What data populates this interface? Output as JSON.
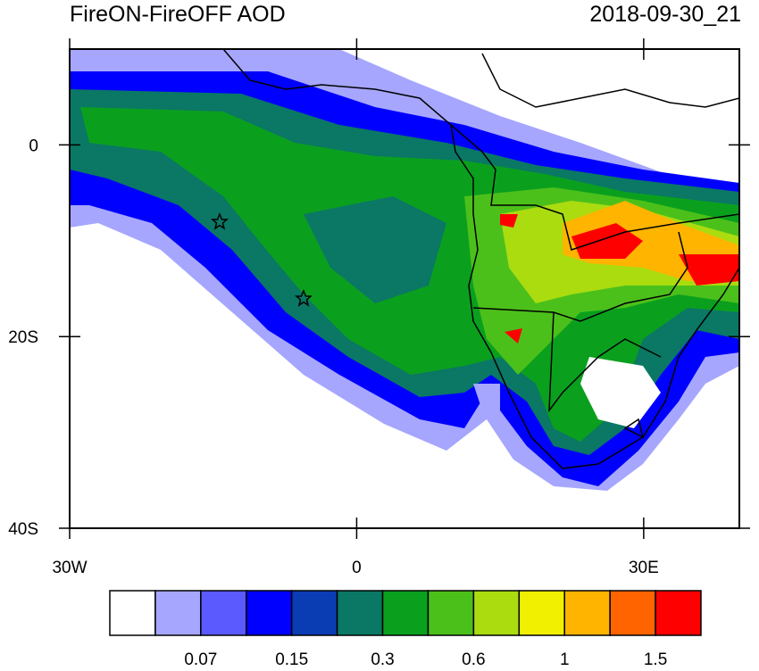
{
  "map": {
    "title": "FireON-FireOFF AOD",
    "time": "2018-09-30_21",
    "xlim": [
      -30,
      40
    ],
    "ylim": [
      -40,
      10
    ],
    "xticks": [
      {
        "value": -30,
        "label": "30W"
      },
      0,
      {
        "value": 30,
        "label": "30E"
      }
    ],
    "yticks": [
      0,
      {
        "value": -20,
        "label": "20S"
      },
      {
        "value": -40,
        "label": "40S"
      }
    ],
    "colorbar": {
      "colors": [
        "#ffffff",
        "#a6a6ff",
        "#5a5aff",
        "#0000ff",
        "#0a3cb4",
        "#0a7864",
        "#0aa01e",
        "#4cc01a",
        "#aadc10",
        "#f0f000",
        "#ffb400",
        "#ff6400",
        "#ff0000"
      ],
      "labels": [
        0.07,
        0.15,
        0.3,
        0.6,
        1,
        1.5
      ]
    }
  }
}
